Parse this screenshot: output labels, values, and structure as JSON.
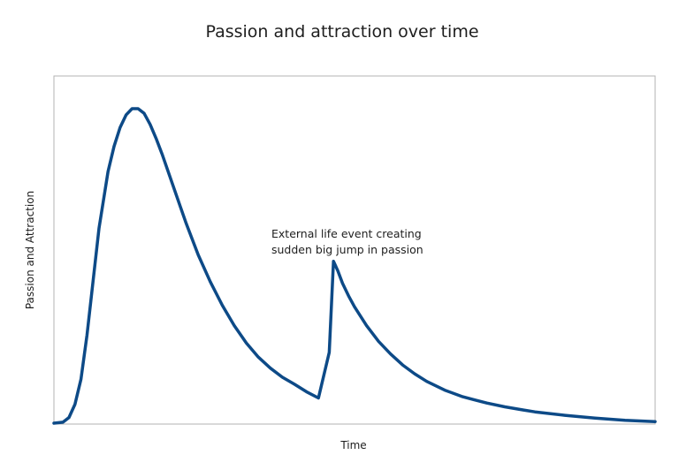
{
  "chart_data": {
    "type": "line",
    "title": "Passion and attraction over time",
    "xlabel": "Time",
    "ylabel": "Passion and Attraction",
    "show_axis_ticks": false,
    "grid": false,
    "legend": "none",
    "xlim": [
      0,
      100
    ],
    "ylim": [
      0,
      100
    ],
    "series": [
      {
        "color": "#0d4a87",
        "x": [
          0,
          1.5,
          2.5,
          3.5,
          4.5,
          5.5,
          6.5,
          7.5,
          9,
          10,
          11,
          12,
          13,
          14,
          15,
          16,
          17,
          18,
          19,
          20,
          21,
          22,
          24,
          26,
          28,
          30,
          32,
          34,
          36,
          38,
          40,
          42,
          44,
          45.8,
          46.5,
          47.2,
          48,
          49,
          50,
          52,
          54,
          56,
          58,
          60,
          62,
          65,
          68,
          70,
          72,
          75,
          78,
          80,
          85,
          90,
          95,
          100
        ],
        "y": [
          0,
          0.3,
          1.8,
          6,
          14,
          28,
          45,
          62,
          80,
          88,
          94,
          98,
          100,
          100,
          98.5,
          95,
          90.5,
          85.5,
          80,
          74.5,
          69,
          63.5,
          53.5,
          45,
          37.5,
          31,
          25.5,
          21,
          17.5,
          14.6,
          12.4,
          10,
          8,
          22.5,
          51.5,
          48.5,
          44.5,
          40.5,
          37,
          31,
          26,
          22,
          18.5,
          15.7,
          13.3,
          10.5,
          8.4,
          7.4,
          6.4,
          5.2,
          4.2,
          3.6,
          2.5,
          1.6,
          0.9,
          0.5
        ]
      }
    ],
    "annotations": [
      {
        "text_lines": [
          "External life event creating",
          "sudden big jump in passion"
        ],
        "x": 47,
        "y": 51.5
      }
    ]
  }
}
